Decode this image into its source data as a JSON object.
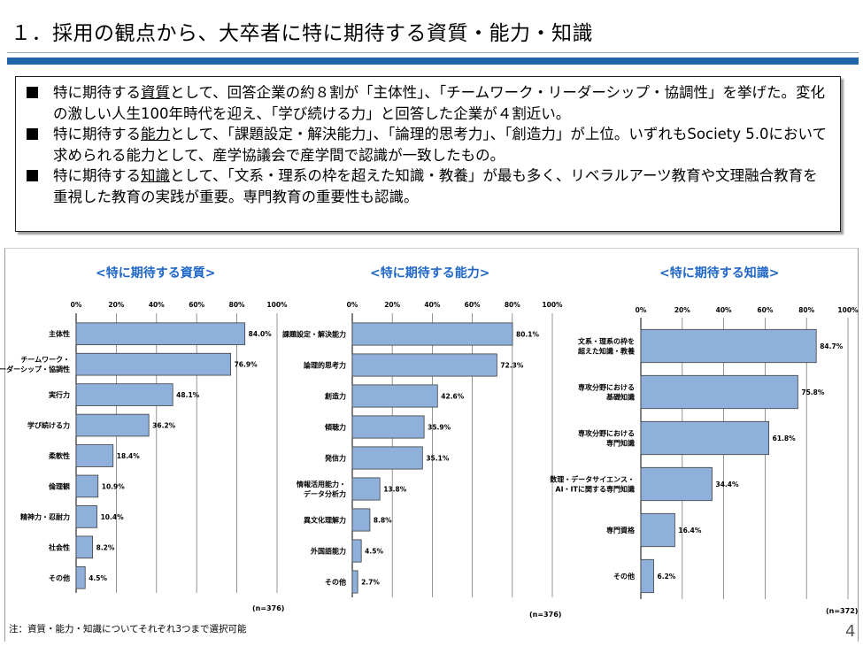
{
  "title": "１．採用の観点から、大卒者に特に期待する資質・能力・知識",
  "summary": {
    "bullets": [
      {
        "pre": "特に期待する",
        "key": "資質",
        "post": "として、回答企業の約８割が「主体性」、「チームワーク・リーダーシップ・協調性」を挙げた。変化の激しい人生100年時代を迎え、「学び続ける力」と回答した企業が４割近い。"
      },
      {
        "pre": "特に期待する",
        "key": "能力",
        "post": "として、「課題設定・解決能力」、「論理的思考力」、「創造力」が上位。いずれもSociety 5.0において求められる能力として、産学協議会で産学間で認識が一致したもの。"
      },
      {
        "pre": "特に期待する",
        "key": "知識",
        "post": "として、「文系・理系の枠を超えた知識・教養」が最も多く、リベラルアーツ教育や文理融合教育を重視した教育の実践が重要。専門教育の重要性も認識。"
      }
    ]
  },
  "colors": {
    "bar": "#8fb0db",
    "bar_stroke": "#3e3e3e",
    "heading": "#1f67c7",
    "rule": "#1f63a8"
  },
  "chart_data": [
    {
      "type": "bar",
      "orientation": "horizontal",
      "title": "<特に期待する資質>",
      "categories": [
        [
          "主体性"
        ],
        [
          "チームワーク・",
          "リーダーシップ・協調性"
        ],
        [
          "実行力"
        ],
        [
          "学び続ける力"
        ],
        [
          "柔軟性"
        ],
        [
          "倫理観"
        ],
        [
          "精神力・忍耐力"
        ],
        [
          "社会性"
        ],
        [
          "その他"
        ]
      ],
      "values": [
        84.0,
        76.9,
        48.1,
        36.2,
        18.4,
        10.9,
        10.4,
        8.2,
        4.5
      ],
      "value_labels": [
        "84.0%",
        "76.9%",
        "48.1%",
        "36.2%",
        "18.4%",
        "10.9%",
        "10.4%",
        "8.2%",
        "4.5%"
      ],
      "ticks": [
        "0%",
        "20%",
        "40%",
        "60%",
        "80%",
        "100%"
      ],
      "xlim": [
        0,
        100
      ],
      "grid": true,
      "n_label": "(n=376)"
    },
    {
      "type": "bar",
      "orientation": "horizontal",
      "title": "<特に期待する能力>",
      "categories": [
        [
          "課題設定・解決能力"
        ],
        [
          "論理的思考力"
        ],
        [
          "創造力"
        ],
        [
          "傾聴力"
        ],
        [
          "発信力"
        ],
        [
          "情報活用能力・",
          "データ分析力"
        ],
        [
          "異文化理解力"
        ],
        [
          "外国語能力"
        ],
        [
          "その他"
        ]
      ],
      "values": [
        80.1,
        72.3,
        42.6,
        35.9,
        35.1,
        13.8,
        8.8,
        4.5,
        2.7
      ],
      "value_labels": [
        "80.1%",
        "72.3%",
        "42.6%",
        "35.9%",
        "35.1%",
        "13.8%",
        "8.8%",
        "4.5%",
        "2.7%"
      ],
      "ticks": [
        "0%",
        "20%",
        "40%",
        "60%",
        "80%",
        "100%"
      ],
      "xlim": [
        0,
        100
      ],
      "grid": true,
      "n_label": "(n=376)"
    },
    {
      "type": "bar",
      "orientation": "horizontal",
      "title": "<特に期待する知識>",
      "categories": [
        [
          "文系・理系の枠を",
          "超えた知識・教養"
        ],
        [
          "専攻分野における",
          "基礎知識"
        ],
        [
          "専攻分野における",
          "専門知識"
        ],
        [
          "数理・データサイエンス・",
          "AI・ITに関する専門知識"
        ],
        [
          "専門資格"
        ],
        [
          "その他"
        ]
      ],
      "values": [
        84.7,
        75.8,
        61.8,
        34.4,
        16.4,
        6.2
      ],
      "value_labels": [
        "84.7%",
        "75.8%",
        "61.8%",
        "34.4%",
        "16.4%",
        "6.2%"
      ],
      "ticks": [
        "0%",
        "20%",
        "40%",
        "60%",
        "80%",
        "100%"
      ],
      "xlim": [
        0,
        100
      ],
      "grid": true,
      "n_label": "(n=372)"
    }
  ],
  "footnote": "注：資質・能力・知識についてそれぞれ3つまで選択可能",
  "page_number": "4"
}
